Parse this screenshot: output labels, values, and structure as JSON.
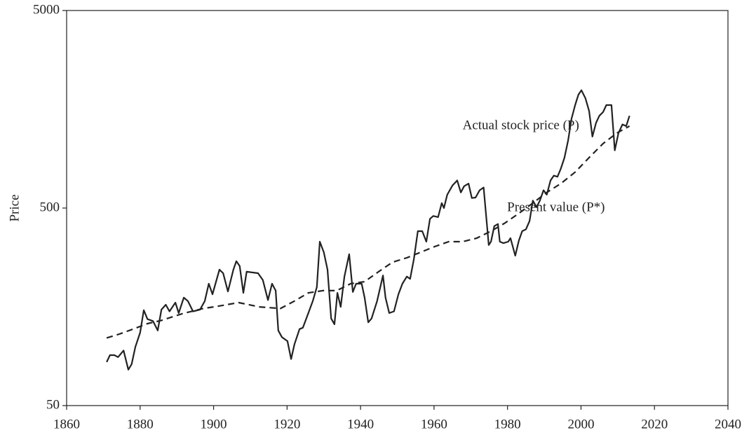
{
  "chart_data": {
    "type": "line",
    "y_label": "Price",
    "log_y": true,
    "xlim": [
      1860,
      2040
    ],
    "xticks": [
      1860,
      1880,
      1900,
      1920,
      1940,
      1960,
      1980,
      2000,
      2020,
      2040
    ],
    "ylim": [
      50,
      5000
    ],
    "yticks": [
      50,
      500,
      5000
    ],
    "annotations": [
      {
        "text": "Actual stock price (P)",
        "x": 1999.5,
        "y": 1300
      },
      {
        "text": "Present value (P*)",
        "x": 2006.5,
        "y": 500
      }
    ],
    "series": [
      {
        "name": "Actual stock price (P)",
        "color": "#222222",
        "line_style": "solid",
        "x": [
          1870.9,
          1871.8,
          1873,
          1874,
          1875.5,
          1876.8,
          1877.7,
          1878.7,
          1880,
          1881,
          1882,
          1883.5,
          1884.8,
          1885.8,
          1887,
          1888,
          1889.6,
          1890.5,
          1891.9,
          1893,
          1894.4,
          1896.3,
          1897.6,
          1898.7,
          1899.7,
          1901.6,
          1902.6,
          1903.9,
          1905.4,
          1906.2,
          1907.1,
          1908.1,
          1909,
          1912.1,
          1913.4,
          1914.8,
          1915.9,
          1916.9,
          1917.6,
          1918.6,
          1920.1,
          1921.1,
          1922,
          1923.4,
          1924.3,
          1925.8,
          1927,
          1928.1,
          1928.9,
          1930,
          1931,
          1932,
          1932.9,
          1933.7,
          1934.6,
          1935.6,
          1936.9,
          1937.9,
          1938.8,
          1940.3,
          1941.1,
          1942.1,
          1943,
          1944.5,
          1946.1,
          1946.8,
          1947.8,
          1949.1,
          1950.3,
          1951.4,
          1952.6,
          1953.5,
          1954.5,
          1955.6,
          1956.8,
          1957.9,
          1958.9,
          1959.8,
          1961.1,
          1962.1,
          1962.7,
          1963.6,
          1965,
          1966.3,
          1967.3,
          1968.2,
          1969.4,
          1970.3,
          1971.3,
          1972.4,
          1973.5,
          1974.9,
          1975.5,
          1976.4,
          1977.4,
          1977.9,
          1978.9,
          1980.2,
          1980.8,
          1982.1,
          1983.1,
          1984,
          1985,
          1986,
          1986.9,
          1987.9,
          1988.8,
          1989.8,
          1990.7,
          1991.7,
          1992.6,
          1993.6,
          1994.5,
          1995.5,
          1996.5,
          1997.4,
          1998.4,
          1999.3,
          2000.1,
          2001.2,
          2002.2,
          2003.1,
          2004.1,
          2005,
          2006,
          2006.9,
          2008.3,
          2009.2,
          2010.2,
          2011.3,
          2012.3,
          2013.2
        ],
        "values": [
          83,
          90,
          90,
          88,
          95,
          76,
          81,
          99,
          117,
          152,
          137,
          134,
          120,
          153,
          162,
          150,
          166,
          147,
          176,
          169,
          150,
          153,
          169,
          207,
          183,
          244,
          234,
          189,
          244,
          269,
          254,
          186,
          238,
          234,
          216,
          171,
          207,
          191,
          120,
          111,
          106,
          86,
          102,
          122,
          124,
          147,
          169,
          199,
          338,
          299,
          244,
          138,
          129,
          186,
          158,
          225,
          292,
          188,
          207,
          207,
          176,
          132,
          138,
          169,
          228,
          176,
          147,
          150,
          183,
          207,
          225,
          219,
          275,
          382,
          382,
          338,
          441,
          456,
          450,
          530,
          500,
          584,
          650,
          690,
          600,
          645,
          665,
          562,
          565,
          615,
          635,
          325,
          338,
          405,
          415,
          338,
          332,
          338,
          352,
          287,
          343,
          382,
          390,
          430,
          545,
          505,
          545,
          615,
          585,
          690,
          730,
          720,
          790,
          900,
          1100,
          1410,
          1660,
          1875,
          1975,
          1800,
          1550,
          1150,
          1350,
          1465,
          1530,
          1660,
          1660,
          980,
          1200,
          1325,
          1300,
          1465
        ]
      },
      {
        "name": "Present value (P*)",
        "color": "#222222",
        "line_style": "dashed",
        "x": [
          1870.9,
          1874.3,
          1878.1,
          1882,
          1885.8,
          1891.5,
          1897.2,
          1901,
          1906.8,
          1912.5,
          1918.2,
          1922,
          1925.8,
          1929.7,
          1933.5,
          1937.3,
          1941.1,
          1944.9,
          1948.7,
          1952.6,
          1956.4,
          1960.2,
          1964,
          1967.8,
          1971.6,
          1975.5,
          1979.3,
          1983.1,
          1986.9,
          1990.7,
          1994.5,
          1998.4,
          2002.2,
          2006,
          2009.8,
          2013.2
        ],
        "values": [
          110,
          115,
          122,
          130,
          135,
          146,
          155,
          159,
          166,
          158,
          155,
          169,
          186,
          191,
          191,
          207,
          212,
          238,
          266,
          280,
          299,
          319,
          338,
          338,
          352,
          382,
          420,
          470,
          530,
          600,
          665,
          760,
          900,
          1060,
          1200,
          1300
        ]
      }
    ]
  }
}
